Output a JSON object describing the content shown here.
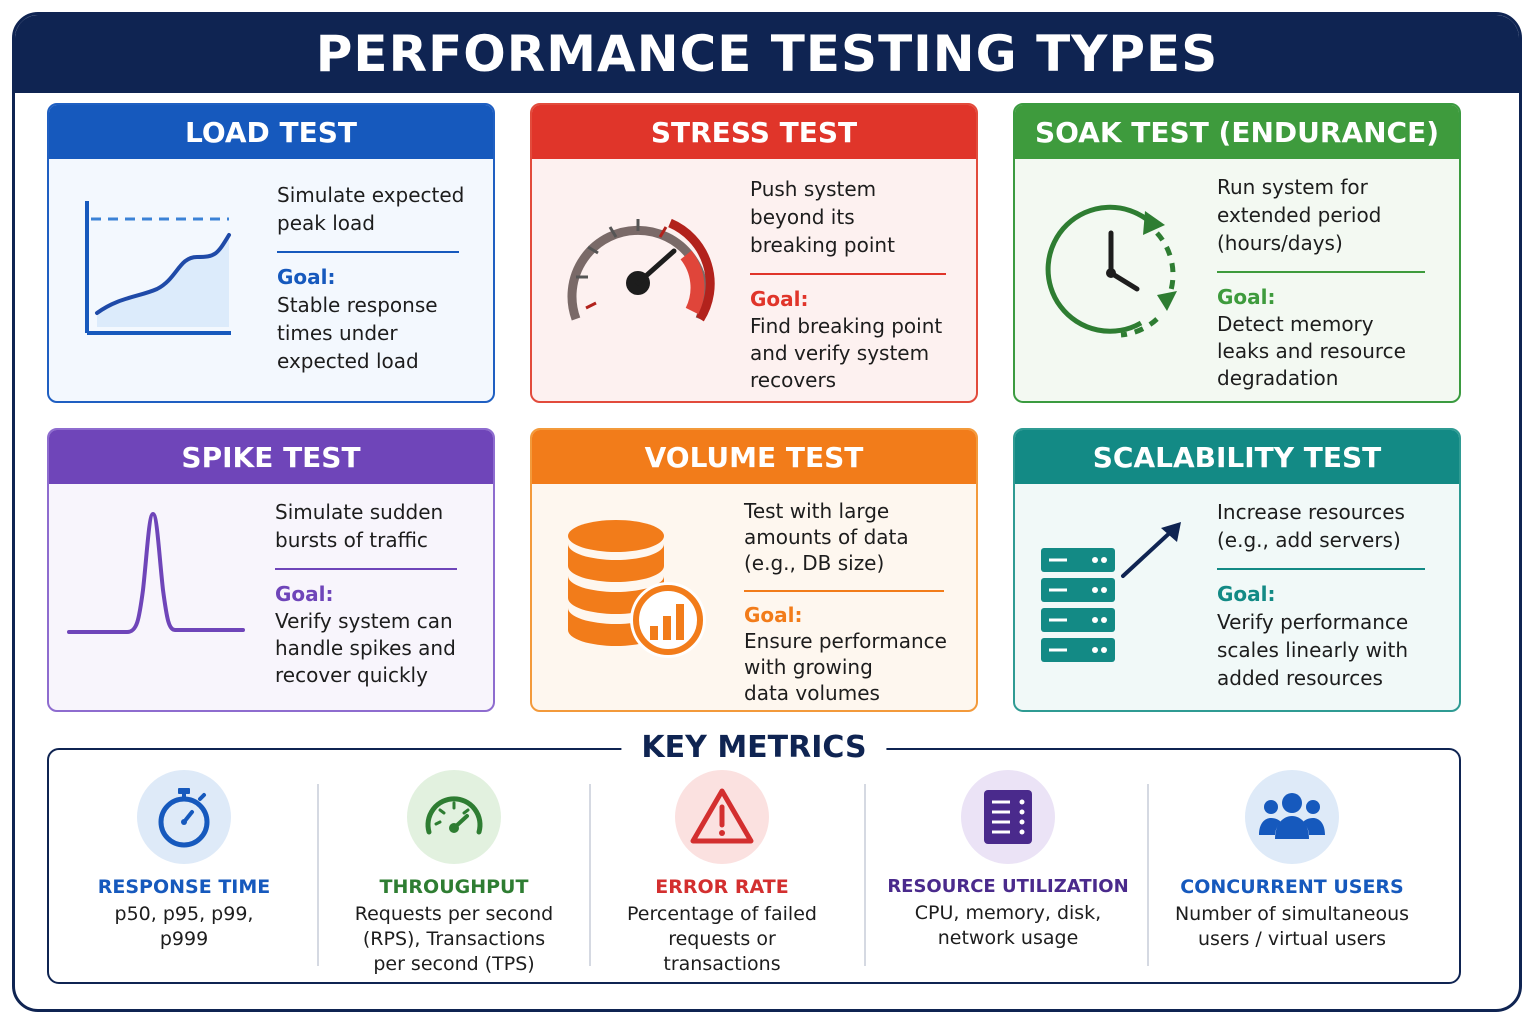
{
  "title": "PERFORMANCE TESTING TYPES",
  "colors": {
    "navy": "#0f2452",
    "load": "#1659bd",
    "stress": "#e0352a",
    "soak": "#3e9b3d",
    "spike": "#6f45b9",
    "volume": "#f27c1a",
    "scalability": "#138a85"
  },
  "cards": {
    "load": {
      "title": "LOAD TEST",
      "icon": "line-chart-icon",
      "desc_lines": [
        "Simulate expected",
        "peak load"
      ],
      "goal_label": "Goal:",
      "goal_lines": [
        "Stable response",
        "times under",
        "expected load"
      ]
    },
    "stress": {
      "title": "STRESS TEST",
      "icon": "speedometer-icon",
      "desc_lines": [
        "Push system",
        "beyond its",
        "breaking point"
      ],
      "goal_label": "Goal:",
      "goal_lines": [
        "Find breaking point",
        "and verify system",
        "recovers"
      ]
    },
    "soak": {
      "title": "SOAK TEST (ENDURANCE)",
      "icon": "clock-icon",
      "desc_lines": [
        "Run system for",
        "extended period",
        "(hours/days)"
      ],
      "goal_label": "Goal:",
      "goal_lines": [
        "Detect memory",
        "leaks and resource",
        "degradation"
      ]
    },
    "spike": {
      "title": "SPIKE TEST",
      "icon": "spike-chart-icon",
      "desc_lines": [
        "Simulate sudden",
        "bursts of traffic"
      ],
      "goal_label": "Goal:",
      "goal_lines": [
        "Verify system can",
        "handle spikes and",
        "recover quickly"
      ]
    },
    "volume": {
      "title": "VOLUME TEST",
      "icon": "database-chart-icon",
      "desc_lines": [
        "Test with large",
        "amounts of data",
        "(e.g., DB size)"
      ],
      "goal_label": "Goal:",
      "goal_lines": [
        "Ensure performance",
        "with growing",
        "data volumes"
      ]
    },
    "scalability": {
      "title": "SCALABILITY TEST",
      "icon": "server-stack-icon",
      "desc_lines": [
        "Increase resources",
        "(e.g., add servers)"
      ],
      "goal_label": "Goal:",
      "goal_lines": [
        "Verify performance",
        "scales linearly with",
        "added resources"
      ]
    }
  },
  "key_metrics": {
    "title": "KEY METRICS",
    "items": [
      {
        "name": "RESPONSE TIME",
        "icon": "stopwatch-icon",
        "color": "#1659bd",
        "desc_lines": [
          "p50, p95, p99,",
          "p999"
        ]
      },
      {
        "name": "THROUGHPUT",
        "icon": "gauge-icon",
        "color": "#2e7d32",
        "desc_lines": [
          "Requests per second",
          "(RPS), Transactions",
          "per second (TPS)"
        ]
      },
      {
        "name": "ERROR RATE",
        "icon": "warning-icon",
        "color": "#d32f2f",
        "desc_lines": [
          "Percentage of failed",
          "requests or",
          "transactions"
        ]
      },
      {
        "name": "RESOURCE UTILIZATION",
        "icon": "server-icon",
        "color": "#4a2a8c",
        "desc_lines": [
          "CPU, memory, disk,",
          "network usage"
        ]
      },
      {
        "name": "CONCURRENT USERS",
        "icon": "users-icon",
        "color": "#1659bd",
        "desc_lines": [
          "Number of simultaneous",
          "users / virtual users"
        ]
      }
    ]
  }
}
